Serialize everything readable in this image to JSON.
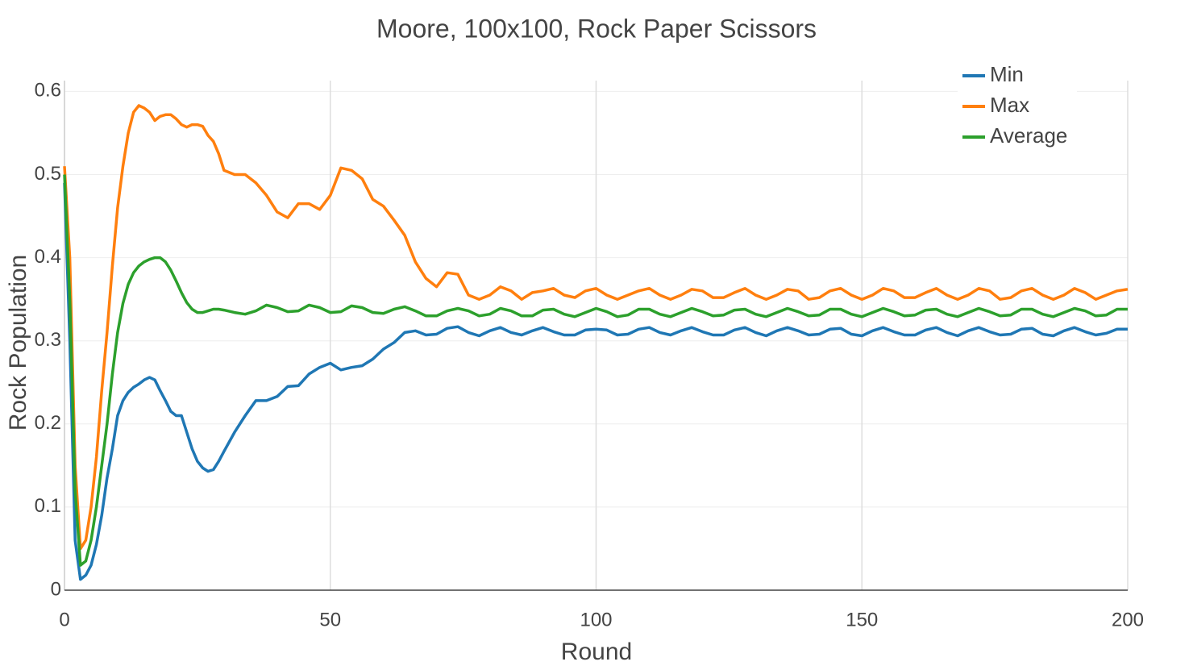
{
  "chart_data": {
    "type": "line",
    "title": "Moore, 100x100, Rock Paper Scissors",
    "x_label": "Round",
    "y_label": "Rock Population",
    "xlim": [
      0,
      200
    ],
    "xticks": [
      0,
      50,
      100,
      150,
      200
    ],
    "ylim": [
      0,
      0.613
    ],
    "yticks": [
      0,
      0.1,
      0.2,
      0.3,
      0.4,
      0.5,
      0.6
    ],
    "grid": true,
    "legend": "top-right",
    "x": [
      0,
      1,
      2,
      3,
      4,
      5,
      6,
      7,
      8,
      9,
      10,
      11,
      12,
      13,
      14,
      15,
      16,
      17,
      18,
      19,
      20,
      21,
      22,
      23,
      24,
      25,
      26,
      27,
      28,
      29,
      30,
      32,
      34,
      36,
      38,
      40,
      42,
      44,
      46,
      48,
      50,
      52,
      54,
      56,
      58,
      60,
      62,
      64,
      66,
      68,
      70,
      72,
      74,
      76,
      78,
      80,
      82,
      84,
      86,
      88,
      90,
      92,
      94,
      96,
      98,
      100,
      102,
      104,
      106,
      108,
      110,
      112,
      114,
      116,
      118,
      120,
      122,
      124,
      126,
      128,
      130,
      132,
      134,
      136,
      138,
      140,
      142,
      144,
      146,
      148,
      150,
      152,
      154,
      156,
      158,
      160,
      162,
      164,
      166,
      168,
      170,
      172,
      174,
      176,
      178,
      180,
      182,
      184,
      186,
      188,
      190,
      192,
      194,
      196,
      198,
      200
    ],
    "series": [
      {
        "name": "Min",
        "color": "#1f77b4",
        "values": [
          0.49,
          0.3,
          0.06,
          0.013,
          0.018,
          0.03,
          0.055,
          0.09,
          0.135,
          0.17,
          0.21,
          0.228,
          0.238,
          0.244,
          0.248,
          0.253,
          0.256,
          0.253,
          0.24,
          0.228,
          0.215,
          0.21,
          0.21,
          0.19,
          0.17,
          0.155,
          0.147,
          0.143,
          0.145,
          0.155,
          0.167,
          0.19,
          0.21,
          0.228,
          0.228,
          0.233,
          0.245,
          0.246,
          0.26,
          0.268,
          0.273,
          0.265,
          0.268,
          0.27,
          0.278,
          0.29,
          0.298,
          0.31,
          0.312,
          0.307,
          0.308,
          0.315,
          0.317,
          0.31,
          0.306,
          0.312,
          0.316,
          0.31,
          0.307,
          0.312,
          0.316,
          0.311,
          0.307,
          0.307,
          0.313,
          0.314,
          0.313,
          0.307,
          0.308,
          0.314,
          0.316,
          0.31,
          0.307,
          0.312,
          0.316,
          0.311,
          0.307,
          0.307,
          0.313,
          0.316,
          0.31,
          0.306,
          0.312,
          0.316,
          0.312,
          0.307,
          0.308,
          0.314,
          0.315,
          0.308,
          0.306,
          0.312,
          0.316,
          0.311,
          0.307,
          0.307,
          0.313,
          0.316,
          0.31,
          0.306,
          0.312,
          0.316,
          0.311,
          0.307,
          0.308,
          0.314,
          0.315,
          0.308,
          0.306,
          0.312,
          0.316,
          0.311,
          0.307,
          0.309,
          0.314,
          0.314
        ]
      },
      {
        "name": "Max",
        "color": "#ff7f0e",
        "values": [
          0.51,
          0.4,
          0.15,
          0.05,
          0.06,
          0.1,
          0.16,
          0.24,
          0.31,
          0.39,
          0.46,
          0.51,
          0.55,
          0.575,
          0.583,
          0.58,
          0.575,
          0.565,
          0.57,
          0.572,
          0.572,
          0.567,
          0.56,
          0.557,
          0.56,
          0.56,
          0.558,
          0.547,
          0.54,
          0.525,
          0.505,
          0.5,
          0.5,
          0.49,
          0.475,
          0.455,
          0.448,
          0.465,
          0.465,
          0.458,
          0.475,
          0.508,
          0.505,
          0.495,
          0.47,
          0.462,
          0.445,
          0.427,
          0.395,
          0.375,
          0.365,
          0.382,
          0.38,
          0.355,
          0.35,
          0.355,
          0.365,
          0.36,
          0.35,
          0.358,
          0.36,
          0.363,
          0.355,
          0.352,
          0.36,
          0.363,
          0.355,
          0.35,
          0.355,
          0.36,
          0.363,
          0.355,
          0.35,
          0.355,
          0.362,
          0.36,
          0.352,
          0.352,
          0.358,
          0.363,
          0.355,
          0.35,
          0.355,
          0.362,
          0.36,
          0.35,
          0.352,
          0.36,
          0.363,
          0.355,
          0.35,
          0.355,
          0.363,
          0.36,
          0.352,
          0.352,
          0.358,
          0.363,
          0.355,
          0.35,
          0.355,
          0.363,
          0.36,
          0.35,
          0.352,
          0.36,
          0.363,
          0.355,
          0.35,
          0.355,
          0.363,
          0.358,
          0.35,
          0.355,
          0.36,
          0.362
        ]
      },
      {
        "name": "Average",
        "color": "#2ca02c",
        "values": [
          0.5,
          0.35,
          0.12,
          0.03,
          0.035,
          0.06,
          0.1,
          0.15,
          0.2,
          0.26,
          0.31,
          0.345,
          0.368,
          0.382,
          0.39,
          0.395,
          0.398,
          0.4,
          0.4,
          0.395,
          0.385,
          0.372,
          0.358,
          0.346,
          0.338,
          0.334,
          0.334,
          0.336,
          0.338,
          0.338,
          0.337,
          0.334,
          0.332,
          0.336,
          0.343,
          0.34,
          0.335,
          0.336,
          0.343,
          0.34,
          0.334,
          0.335,
          0.342,
          0.34,
          0.334,
          0.333,
          0.338,
          0.341,
          0.336,
          0.33,
          0.33,
          0.336,
          0.339,
          0.336,
          0.33,
          0.332,
          0.339,
          0.336,
          0.33,
          0.33,
          0.337,
          0.338,
          0.332,
          0.329,
          0.334,
          0.339,
          0.335,
          0.329,
          0.331,
          0.338,
          0.338,
          0.332,
          0.329,
          0.334,
          0.339,
          0.335,
          0.33,
          0.331,
          0.337,
          0.338,
          0.332,
          0.329,
          0.334,
          0.339,
          0.335,
          0.33,
          0.331,
          0.338,
          0.338,
          0.332,
          0.329,
          0.334,
          0.339,
          0.335,
          0.33,
          0.331,
          0.337,
          0.338,
          0.332,
          0.329,
          0.334,
          0.339,
          0.335,
          0.33,
          0.331,
          0.338,
          0.338,
          0.332,
          0.329,
          0.334,
          0.339,
          0.336,
          0.33,
          0.331,
          0.338,
          0.338
        ]
      }
    ]
  }
}
